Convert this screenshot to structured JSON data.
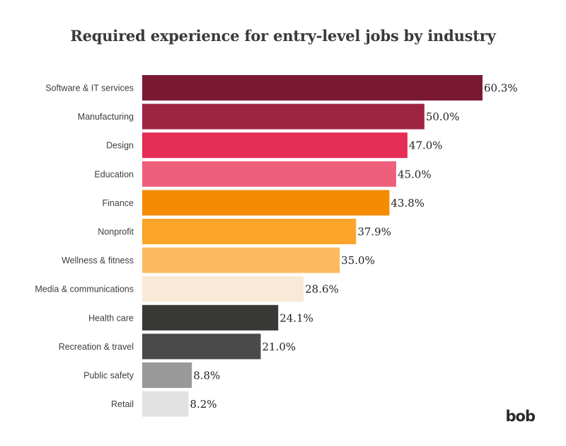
{
  "chart_data": {
    "type": "bar",
    "orientation": "horizontal",
    "title": "Required experience for entry-level jobs by industry",
    "categories": [
      "Software & IT services",
      "Manufacturing",
      "Design",
      "Education",
      "Finance",
      "Nonprofit",
      "Wellness & fitness",
      "Media & communications",
      "Health care",
      "Recreation & travel",
      "Public safety",
      "Retail"
    ],
    "values": [
      60.3,
      50.0,
      47.0,
      45.0,
      43.8,
      37.9,
      35.0,
      28.6,
      24.1,
      21.0,
      8.8,
      8.2
    ],
    "value_labels": [
      "60.3%",
      "50.0%",
      "47.0%",
      "45.0%",
      "43.8%",
      "37.9%",
      "35.0%",
      "28.6%",
      "24.1%",
      "21.0%",
      "8.8%",
      "8.2%"
    ],
    "colors": [
      "#7a1a32",
      "#9e2442",
      "#e52d55",
      "#ee5f7c",
      "#f48b00",
      "#fda42a",
      "#feb95e",
      "#f9ead8",
      "#393936",
      "#4a4a4a",
      "#999999",
      "#e2e2e2"
    ],
    "xlim": [
      0,
      60.3
    ],
    "grid": false,
    "legend": "none"
  },
  "brand": {
    "logo_text": "bob"
  }
}
